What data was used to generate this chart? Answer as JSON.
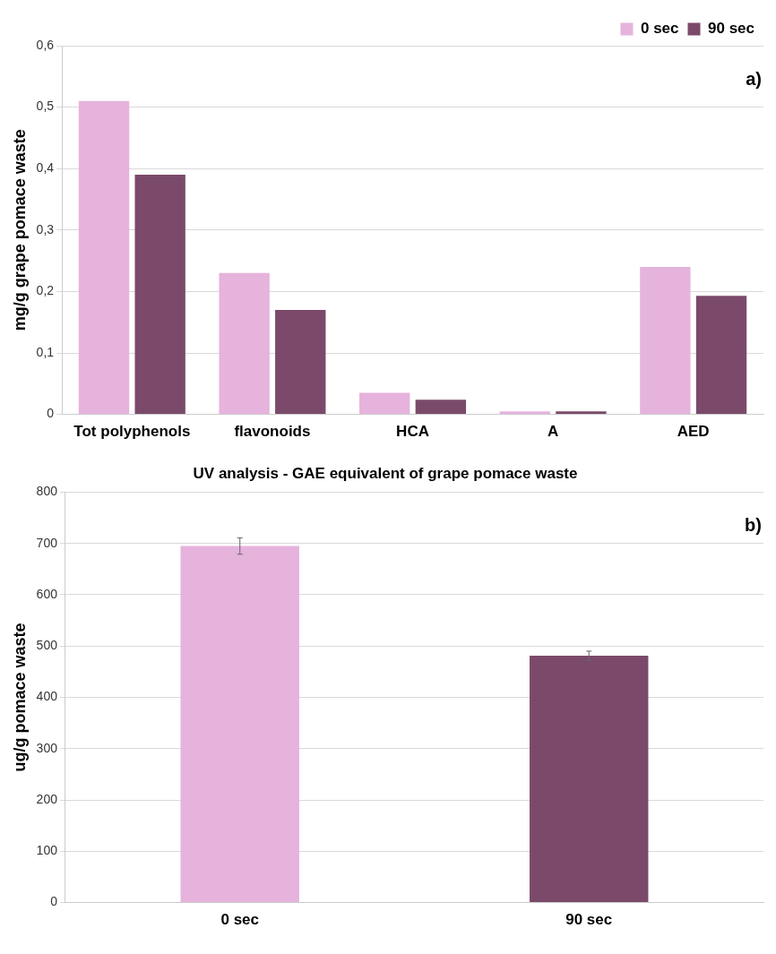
{
  "chart_data": [
    {
      "type": "bar",
      "ylabel": "mg/g grape pomace waste",
      "categories": [
        "Tot polyphenols",
        "flavonoids",
        "HCA",
        "A",
        "AED"
      ],
      "series": [
        {
          "name": "0 sec",
          "color": "#e6b3dc",
          "values": [
            0.51,
            0.23,
            0.035,
            0.005,
            0.24
          ]
        },
        {
          "name": "90 sec",
          "color": "#7b4a6a",
          "values": [
            0.39,
            0.17,
            0.024,
            0.005,
            0.193
          ]
        }
      ],
      "ylim": [
        0,
        0.6
      ],
      "yticks": [
        0,
        {
          "value": 0.1,
          "label": "0,1"
        },
        {
          "value": 0.2,
          "label": "0,2"
        },
        {
          "value": 0.3,
          "label": "0,3"
        },
        {
          "value": 0.4,
          "label": "0,4"
        },
        {
          "value": 0.5,
          "label": "0,5"
        },
        {
          "value": 0.6,
          "label": "0,6"
        }
      ],
      "grid": "y",
      "legend": "top right",
      "annotations": [
        "a)"
      ]
    },
    {
      "type": "bar",
      "title": "UV analysis - GAE equivalent of grape pomace waste",
      "ylabel": "ug/g pomace waste",
      "categories": [
        "0 sec",
        "90 sec"
      ],
      "values": [
        695,
        481
      ],
      "colors": [
        "#e6b3dc",
        "#7b4a6a"
      ],
      "errors": [
        16,
        9
      ],
      "ylim": [
        0,
        800
      ],
      "yticks": [
        0,
        100,
        200,
        300,
        400,
        500,
        600,
        700,
        800
      ],
      "grid": "y",
      "legend": false,
      "annotations": [
        "b)"
      ]
    }
  ]
}
